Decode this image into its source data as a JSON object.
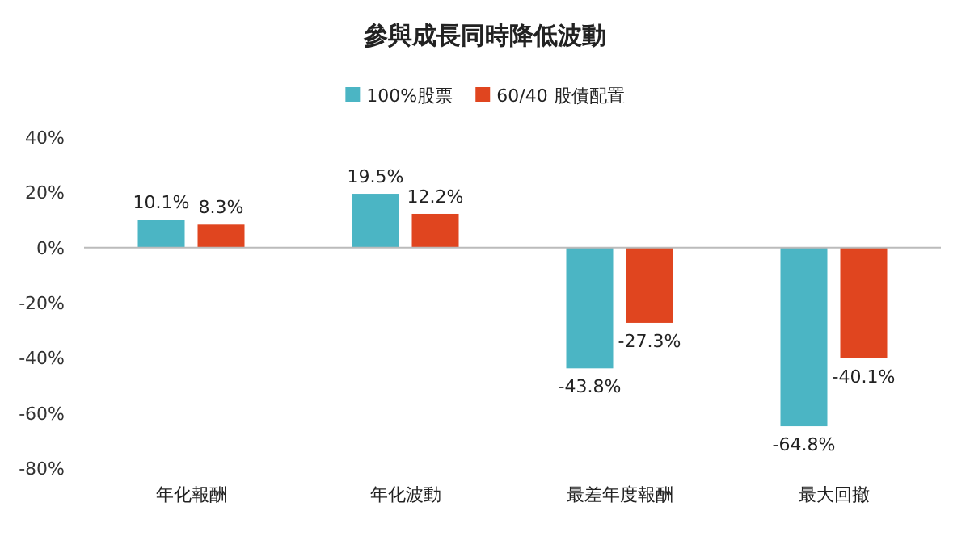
{
  "chart_data": {
    "type": "bar",
    "title": "參與成長同時降低波動",
    "categories": [
      "年化報酬",
      "年化波動",
      "最差年度報酬",
      "最大回撤"
    ],
    "series": [
      {
        "name": "100%股票",
        "color": "#4bb5c4",
        "values": [
          10.1,
          19.5,
          -43.8,
          -64.8
        ],
        "value_labels": [
          "10.1%",
          "19.5%",
          "-43.8%",
          "-64.8%"
        ]
      },
      {
        "name": "60/40 股債配置",
        "color": "#e0451f",
        "values": [
          8.3,
          12.2,
          -27.3,
          -40.1
        ],
        "value_labels": [
          "8.3%",
          "12.2%",
          "-27.3%",
          "-40.1%"
        ]
      }
    ],
    "ylim": [
      -80,
      40
    ],
    "yticks": [
      {
        "value": 40,
        "label": "40%"
      },
      {
        "value": 20,
        "label": "20%"
      },
      {
        "value": 0,
        "label": "0%"
      },
      {
        "value": -20,
        "label": "-20%"
      },
      {
        "value": -40,
        "label": "-40%"
      },
      {
        "value": -60,
        "label": "-60%"
      },
      {
        "value": -80,
        "label": "-80%"
      }
    ],
    "legend": "top"
  }
}
